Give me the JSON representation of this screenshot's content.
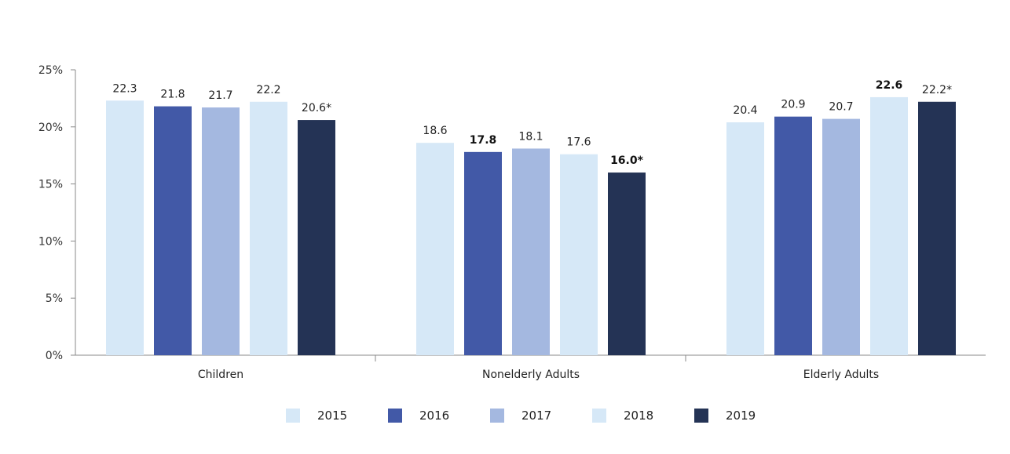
{
  "chart_data": {
    "type": "bar",
    "categories": [
      "Children",
      "Nonelderly Adults",
      "Elderly Adults"
    ],
    "series": [
      {
        "name": "2015",
        "values": [
          22.3,
          18.6,
          20.4
        ],
        "color": "#d6e8f7"
      },
      {
        "name": "2016",
        "values": [
          21.8,
          17.8,
          20.9
        ],
        "color": "#4259a7"
      },
      {
        "name": "2017",
        "values": [
          21.7,
          18.1,
          20.7
        ],
        "color": "#a4b8e0"
      },
      {
        "name": "2018",
        "values": [
          22.2,
          17.6,
          22.6
        ],
        "color": "#d6e8f7"
      },
      {
        "name": "2019",
        "values": [
          20.6,
          16.0,
          22.2
        ],
        "color": "#243355"
      }
    ],
    "data_labels": [
      [
        "22.3",
        "18.6",
        "20.4"
      ],
      [
        "21.8",
        "17.8",
        "20.9"
      ],
      [
        "21.7",
        "18.1",
        "20.7"
      ],
      [
        "22.2",
        "17.6",
        "22.6"
      ],
      [
        "20.6*",
        "16.0*",
        "22.2*"
      ]
    ],
    "bold_labels": [
      [
        false,
        false,
        false
      ],
      [
        false,
        true,
        false
      ],
      [
        false,
        false,
        false
      ],
      [
        false,
        false,
        true
      ],
      [
        false,
        true,
        false
      ]
    ],
    "yticks": [
      "0%",
      "5%",
      "10%",
      "15%",
      "20%",
      "25%"
    ],
    "ytick_values": [
      0,
      5,
      10,
      15,
      20,
      25
    ],
    "ylim": [
      0,
      25
    ],
    "grid": false,
    "legend_position": "bottom"
  }
}
